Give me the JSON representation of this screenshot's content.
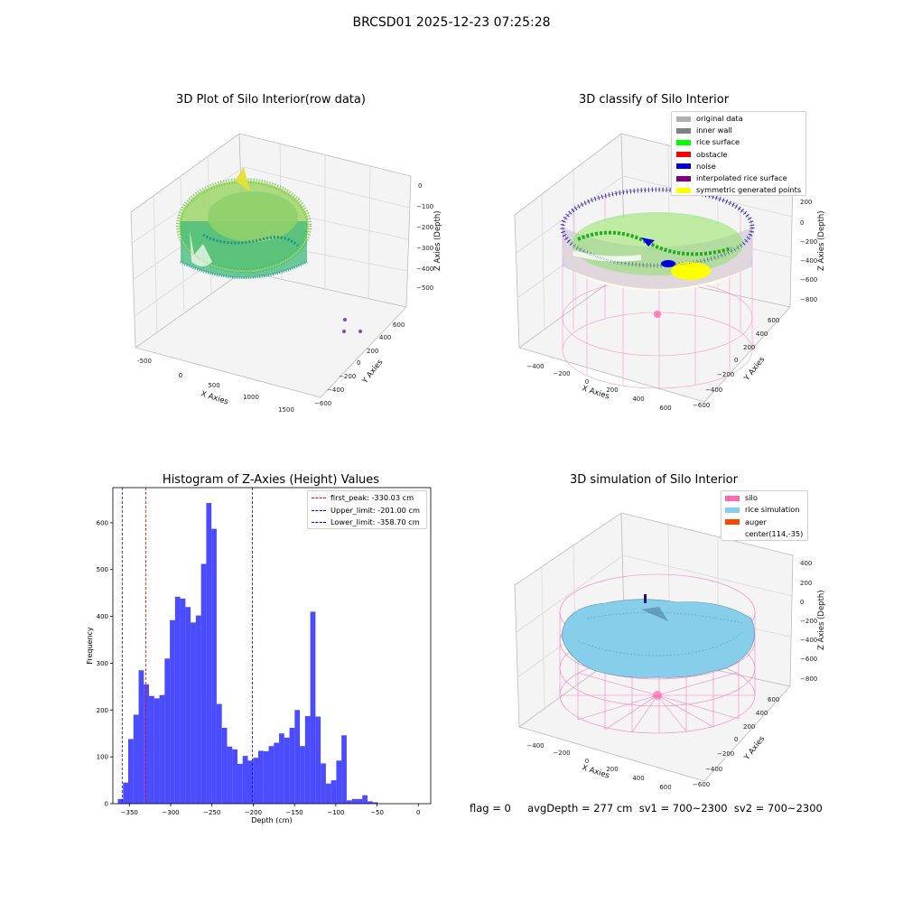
{
  "suptitle": "BRCSD01 2025-12-23 07:25:28",
  "panel1": {
    "title": "3D Plot of Silo Interior(row data)",
    "xlabel": "X Axies",
    "ylabel": "Y Axies",
    "zlabel": "Z Axies (Depth)",
    "xticks": [
      "-500",
      "0",
      "500",
      "1000",
      "1500"
    ],
    "yticks": [
      "600",
      "400",
      "200",
      "0",
      "−200",
      "−400",
      "−600"
    ],
    "zticks": [
      "0",
      "−100",
      "−200",
      "−300",
      "−400",
      "−500"
    ]
  },
  "panel2": {
    "title": "3D classify of Silo Interior",
    "xlabel": "X Axies",
    "ylabel": "Y Axies",
    "zlabel": "Z Axies (Depth)",
    "xticks": [
      "−400",
      "−200",
      "0",
      "200",
      "400",
      "600"
    ],
    "yticks": [
      "600",
      "400",
      "200",
      "0",
      "−200",
      "−400",
      "−600"
    ],
    "zticks": [
      "200",
      "0",
      "−200",
      "−400",
      "−600",
      "−800"
    ],
    "legend": [
      {
        "label": "original data",
        "color": "#b0b0b0"
      },
      {
        "label": "inner wall",
        "color": "#808080"
      },
      {
        "label": "rice surface",
        "color": "#00ff00"
      },
      {
        "label": "obstacle",
        "color": "#ff0000"
      },
      {
        "label": "noise",
        "color": "#0000dd"
      },
      {
        "label": "interpolated rice surface",
        "color": "#800080"
      },
      {
        "label": "symmetric generated points",
        "color": "#ffff00"
      }
    ]
  },
  "panel4": {
    "title": "3D simulation of Silo Interior",
    "xlabel": "X Axies",
    "ylabel": "Y Axies",
    "zlabel": "Z Axies (Depth)",
    "xticks": [
      "−400",
      "−200",
      "0",
      "200",
      "400",
      "600"
    ],
    "yticks": [
      "600",
      "400",
      "200",
      "0",
      "−200",
      "−400",
      "−600"
    ],
    "zticks": [
      "400",
      "200",
      "0",
      "−200",
      "−400",
      "−600",
      "−800"
    ],
    "legend": [
      {
        "label": "silo",
        "color": "#ff69b4"
      },
      {
        "label": "rice simulation",
        "color": "#87ceeb"
      },
      {
        "label": "auger",
        "color": "#ff4500"
      },
      {
        "label": "center(114,-35)",
        "color": ""
      }
    ]
  },
  "chart_data": {
    "type": "bar",
    "title": "Histogram of Z-Axies (Height) Values",
    "xlabel": "Depth (cm)",
    "ylabel": "Frequency",
    "xlim": [
      -370,
      15
    ],
    "ylim": [
      0,
      675
    ],
    "bar_color": "#0000ff",
    "bin_width": 6.3,
    "bin_starts": [
      -364,
      -357.7,
      -351.4,
      -345.1,
      -338.8,
      -332.5,
      -326.2,
      -319.9,
      -313.6,
      -307.3,
      -301,
      -294.7,
      -288.4,
      -282.1,
      -275.8,
      -269.5,
      -263.2,
      -256.9,
      -250.6,
      -244.3,
      -238,
      -231.7,
      -225.4,
      -219.1,
      -212.8,
      -206.5,
      -200.2,
      -193.9,
      -187.6,
      -181.3,
      -175,
      -168.7,
      -162.4,
      -156.1,
      -149.8,
      -143.5,
      -137.2,
      -130.9,
      -124.6,
      -118.3,
      -112,
      -105.7,
      -99.4,
      -93.1,
      -86.8,
      -80.5,
      -74.2,
      -67.9,
      -61.6,
      -55.3,
      -49,
      -42.7,
      -36.4,
      -30.1,
      -23.8,
      -17.5,
      -11.2,
      -4.9
    ],
    "values": [
      10,
      45,
      138,
      190,
      285,
      255,
      230,
      225,
      232,
      310,
      392,
      442,
      438,
      420,
      387,
      402,
      512,
      642,
      587,
      213,
      162,
      122,
      116,
      85,
      102,
      92,
      98,
      113,
      112,
      123,
      130,
      150,
      141,
      162,
      200,
      123,
      187,
      410,
      186,
      86,
      43,
      50,
      92,
      146,
      7,
      10,
      10,
      18,
      5,
      3,
      0,
      0,
      0,
      0,
      0,
      0,
      0,
      0
    ],
    "xticks": [
      -350,
      -300,
      -250,
      -200,
      -150,
      -100,
      -50,
      0
    ],
    "yticks": [
      0,
      100,
      200,
      300,
      400,
      500,
      600
    ],
    "vlines": [
      {
        "x": -330.03,
        "color": "#ff0000",
        "label": "first_peak: -330.03 cm"
      },
      {
        "x": -201.0,
        "color": "#0000ff",
        "label": "Upper_limit: -201.00 cm"
      },
      {
        "x": -358.7,
        "color": "#0000ff",
        "label": "Lower_limit: -358.70 cm"
      }
    ],
    "legend": [
      "first_peak: -330.03 cm",
      "Upper_limit: -201.00 cm",
      "Lower_limit: -358.70 cm"
    ]
  },
  "footer": "flag = 0     avgDepth = 277 cm  sv1 = 700~2300  sv2 = 700~2300"
}
